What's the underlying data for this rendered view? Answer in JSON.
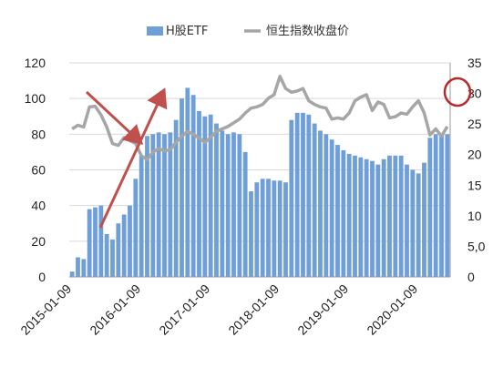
{
  "chart_data": {
    "type": "bar",
    "title": "",
    "xlabel": "",
    "ylabel_left": "",
    "ylabel_right": "",
    "grid": true,
    "legend_position": "top",
    "x_tick_labels": [
      "2015-01-09",
      "2016-01-09",
      "2017-01-09",
      "2018-01-09",
      "2019-01-09",
      "2020-01-09"
    ],
    "x_range": [
      "2015-01",
      "2020-06"
    ],
    "y_left": {
      "ticks": [
        "0",
        "20",
        "40",
        "60",
        "80",
        "100",
        "120"
      ],
      "range": [
        0,
        120
      ]
    },
    "y_right": {
      "ticks": [
        "0",
        "5,0",
        "10",
        "15",
        "20",
        "25",
        "30",
        "35"
      ],
      "range": [
        0,
        35
      ]
    },
    "series": [
      {
        "name": "H股ETF",
        "kind": "bar",
        "axis": "left",
        "color": "#6e9fd8",
        "x": [
          "2015-01",
          "2015-02",
          "2015-03",
          "2015-04",
          "2015-05",
          "2015-06",
          "2015-07",
          "2015-08",
          "2015-09",
          "2015-10",
          "2015-11",
          "2015-12",
          "2016-01",
          "2016-02",
          "2016-03",
          "2016-04",
          "2016-05",
          "2016-06",
          "2016-07",
          "2016-08",
          "2016-09",
          "2016-10",
          "2016-11",
          "2016-12",
          "2017-01",
          "2017-02",
          "2017-03",
          "2017-04",
          "2017-05",
          "2017-06",
          "2017-07",
          "2017-08",
          "2017-09",
          "2017-10",
          "2017-11",
          "2017-12",
          "2018-01",
          "2018-02",
          "2018-03",
          "2018-04",
          "2018-05",
          "2018-06",
          "2018-07",
          "2018-08",
          "2018-09",
          "2018-10",
          "2018-11",
          "2018-12",
          "2019-01",
          "2019-02",
          "2019-03",
          "2019-04",
          "2019-05",
          "2019-06",
          "2019-07",
          "2019-08",
          "2019-09",
          "2019-10",
          "2019-11",
          "2019-12",
          "2020-01",
          "2020-02",
          "2020-03",
          "2020-04",
          "2020-05",
          "2020-06"
        ],
        "values": [
          3,
          11,
          10,
          38,
          39,
          40,
          24,
          21,
          30,
          35,
          40,
          55,
          68,
          79,
          80,
          81,
          80,
          81,
          88,
          100,
          106,
          102,
          93,
          90,
          91,
          86,
          82,
          80,
          81,
          80,
          70,
          48,
          53,
          55,
          55,
          54,
          54,
          53,
          88,
          92,
          92,
          91,
          86,
          82,
          80,
          77,
          74,
          71,
          69,
          68,
          67,
          66,
          65,
          63,
          66,
          68,
          68,
          68,
          63,
          60,
          58,
          64,
          78,
          80,
          80,
          80
        ]
      },
      {
        "name": "恒生指数收盘价",
        "kind": "line",
        "axis": "right",
        "color": "#a6a6a6",
        "x": [
          "2015-01",
          "2015-02",
          "2015-03",
          "2015-04",
          "2015-05",
          "2015-06",
          "2015-07",
          "2015-08",
          "2015-09",
          "2015-10",
          "2015-11",
          "2015-12",
          "2016-01",
          "2016-02",
          "2016-03",
          "2016-04",
          "2016-05",
          "2016-06",
          "2016-07",
          "2016-08",
          "2016-09",
          "2016-10",
          "2016-11",
          "2016-12",
          "2017-01",
          "2017-02",
          "2017-03",
          "2017-04",
          "2017-05",
          "2017-06",
          "2017-07",
          "2017-08",
          "2017-09",
          "2017-10",
          "2017-11",
          "2017-12",
          "2018-01",
          "2018-02",
          "2018-03",
          "2018-04",
          "2018-05",
          "2018-06",
          "2018-07",
          "2018-08",
          "2018-09",
          "2018-10",
          "2018-11",
          "2018-12",
          "2019-01",
          "2019-02",
          "2019-03",
          "2019-04",
          "2019-05",
          "2019-06",
          "2019-07",
          "2019-08",
          "2019-09",
          "2019-10",
          "2019-11",
          "2019-12",
          "2020-01",
          "2020-02",
          "2020-03",
          "2020-04",
          "2020-05",
          "2020-06"
        ],
        "values": [
          24.2,
          24.8,
          24.5,
          27.8,
          27.9,
          26.5,
          24.5,
          21.8,
          21.5,
          22.8,
          22.3,
          21.8,
          19.8,
          19.2,
          20.4,
          21.0,
          20.6,
          20.8,
          22.0,
          23.0,
          23.8,
          23.3,
          22.7,
          22.0,
          22.8,
          23.8,
          24.2,
          24.6,
          25.2,
          25.8,
          26.8,
          27.6,
          27.8,
          28.2,
          29.2,
          29.8,
          32.8,
          30.8,
          30.2,
          30.4,
          30.8,
          28.8,
          28.2,
          27.8,
          27.6,
          25.8,
          26.0,
          25.8,
          26.8,
          28.8,
          29.4,
          29.8,
          27.2,
          28.6,
          28.2,
          26.0,
          26.2,
          26.8,
          26.6,
          27.8,
          28.8,
          26.8,
          23.2,
          24.2,
          23.0,
          24.6
        ]
      }
    ]
  }
}
